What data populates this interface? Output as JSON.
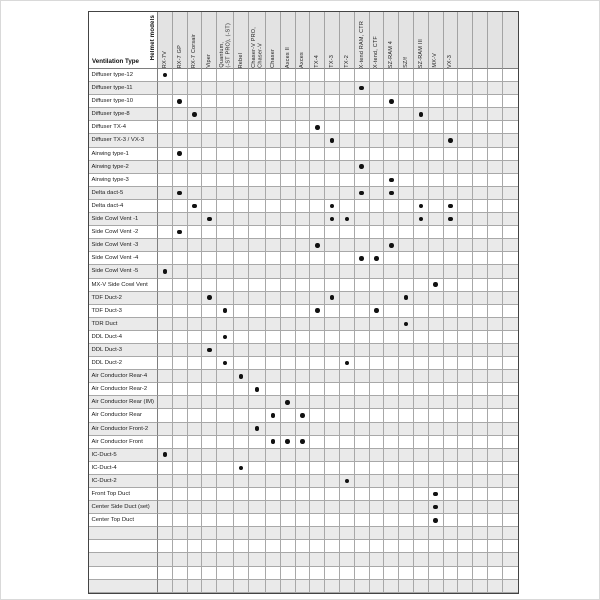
{
  "table": {
    "corner": {
      "helmet_models_label": "Helmet models",
      "ventilation_type_label": "Ventilation Type"
    },
    "columns": [
      {
        "label": "RX-7V"
      },
      {
        "label": "RX-7 GP"
      },
      {
        "label": "RX-7 Corsair"
      },
      {
        "label": "Viper"
      },
      {
        "label": "Quantum,\n(-ST PRO), (-ST)"
      },
      {
        "label": "Rebel"
      },
      {
        "label": "Chaser-V PRO,\nChaser-V"
      },
      {
        "label": "Chaser"
      },
      {
        "label": "Axces II"
      },
      {
        "label": "Axces"
      },
      {
        "label": "TX-4"
      },
      {
        "label": "TX-3"
      },
      {
        "label": "TX-2"
      },
      {
        "label": "X-tend RAM, CTR"
      },
      {
        "label": "X-tend, CTF"
      },
      {
        "label": "SZ-RAM 4"
      },
      {
        "label": "SZ/f"
      },
      {
        "label": "SZ-RAM III"
      },
      {
        "label": "MX-V"
      },
      {
        "label": "VX-3"
      },
      {
        "label": ""
      },
      {
        "label": ""
      },
      {
        "label": ""
      },
      {
        "label": ""
      }
    ],
    "rows": [
      {
        "label": "Diffuser type-12",
        "dots": [
          1
        ]
      },
      {
        "label": "Diffuser type-11",
        "dots": [
          14
        ]
      },
      {
        "label": "Diffuser type-10",
        "dots": [
          2,
          16
        ]
      },
      {
        "label": "Diffuser type-8",
        "dots": [
          3,
          18
        ]
      },
      {
        "label": "Diffuser TX-4",
        "dots": [
          11
        ]
      },
      {
        "label": "Diffuser TX-3 / VX-3",
        "dots": [
          12,
          20
        ]
      },
      {
        "label": "Airwing type-1",
        "dots": [
          2
        ]
      },
      {
        "label": "Airwing type-2",
        "dots": [
          14
        ]
      },
      {
        "label": "Airwing type-3",
        "dots": [
          16
        ]
      },
      {
        "label": "Delta dact-5",
        "dots": [
          2,
          14,
          16
        ]
      },
      {
        "label": "Delta dact-4",
        "dots": [
          3,
          12,
          18,
          20
        ]
      },
      {
        "label": "Side Cowl Vent -1",
        "dots": [
          4,
          12,
          13,
          18,
          20
        ]
      },
      {
        "label": "Side Cowl Vent -2",
        "dots": [
          2
        ]
      },
      {
        "label": "Side Cowl Vent -3",
        "dots": [
          11,
          16
        ]
      },
      {
        "label": "Side Cowl Vent -4",
        "dots": [
          14,
          15
        ]
      },
      {
        "label": "Side Cowl Vent -5",
        "dots": [
          1
        ]
      },
      {
        "label": "MX-V Side Cowl Vent",
        "dots": [
          19
        ]
      },
      {
        "label": "TDF Duct-2",
        "dots": [
          4,
          12,
          17
        ]
      },
      {
        "label": "TDF Duct-3",
        "dots": [
          5,
          11,
          15
        ]
      },
      {
        "label": "TDR Duct",
        "dots": [
          17
        ]
      },
      {
        "label": "DDL Duct-4",
        "dots": [
          5
        ]
      },
      {
        "label": "DDL Duct-3",
        "dots": [
          4
        ]
      },
      {
        "label": "DDL Duct-2",
        "dots": [
          5,
          13
        ]
      },
      {
        "label": "Air Conductor Rear-4",
        "dots": [
          6
        ]
      },
      {
        "label": "Air Conductor Rear-2",
        "dots": [
          7
        ]
      },
      {
        "label": "Air Conductor Rear (IM)",
        "dots": [
          9
        ]
      },
      {
        "label": "Air Conductor Rear",
        "dots": [
          8,
          10
        ]
      },
      {
        "label": "Air Conductor Front-2",
        "dots": [
          7
        ]
      },
      {
        "label": "Air Conductor Front",
        "dots": [
          8,
          9,
          10
        ]
      },
      {
        "label": "IC-Duct-5",
        "dots": [
          1
        ]
      },
      {
        "label": "IC-Duct-4",
        "dots": [
          6
        ]
      },
      {
        "label": "IC-Duct-2",
        "dots": [
          13
        ]
      },
      {
        "label": "Front Top Duct",
        "dots": [
          19
        ]
      },
      {
        "label": "Center Side Duct (set)",
        "dots": [
          19
        ]
      },
      {
        "label": "Center Top Duct",
        "dots": [
          19
        ]
      },
      {
        "label": "",
        "dots": []
      },
      {
        "label": "",
        "dots": []
      },
      {
        "label": "",
        "dots": []
      },
      {
        "label": "",
        "dots": []
      },
      {
        "label": "",
        "dots": []
      }
    ],
    "colors": {
      "header_bg": "#e3e3e3",
      "row_alt_bg": "#eaeaea",
      "grid_line": "#a8a8a8",
      "outer_border": "#444444",
      "dot": "#111111",
      "text": "#1a1a1a"
    },
    "marker_glyph": "filled-dot"
  }
}
